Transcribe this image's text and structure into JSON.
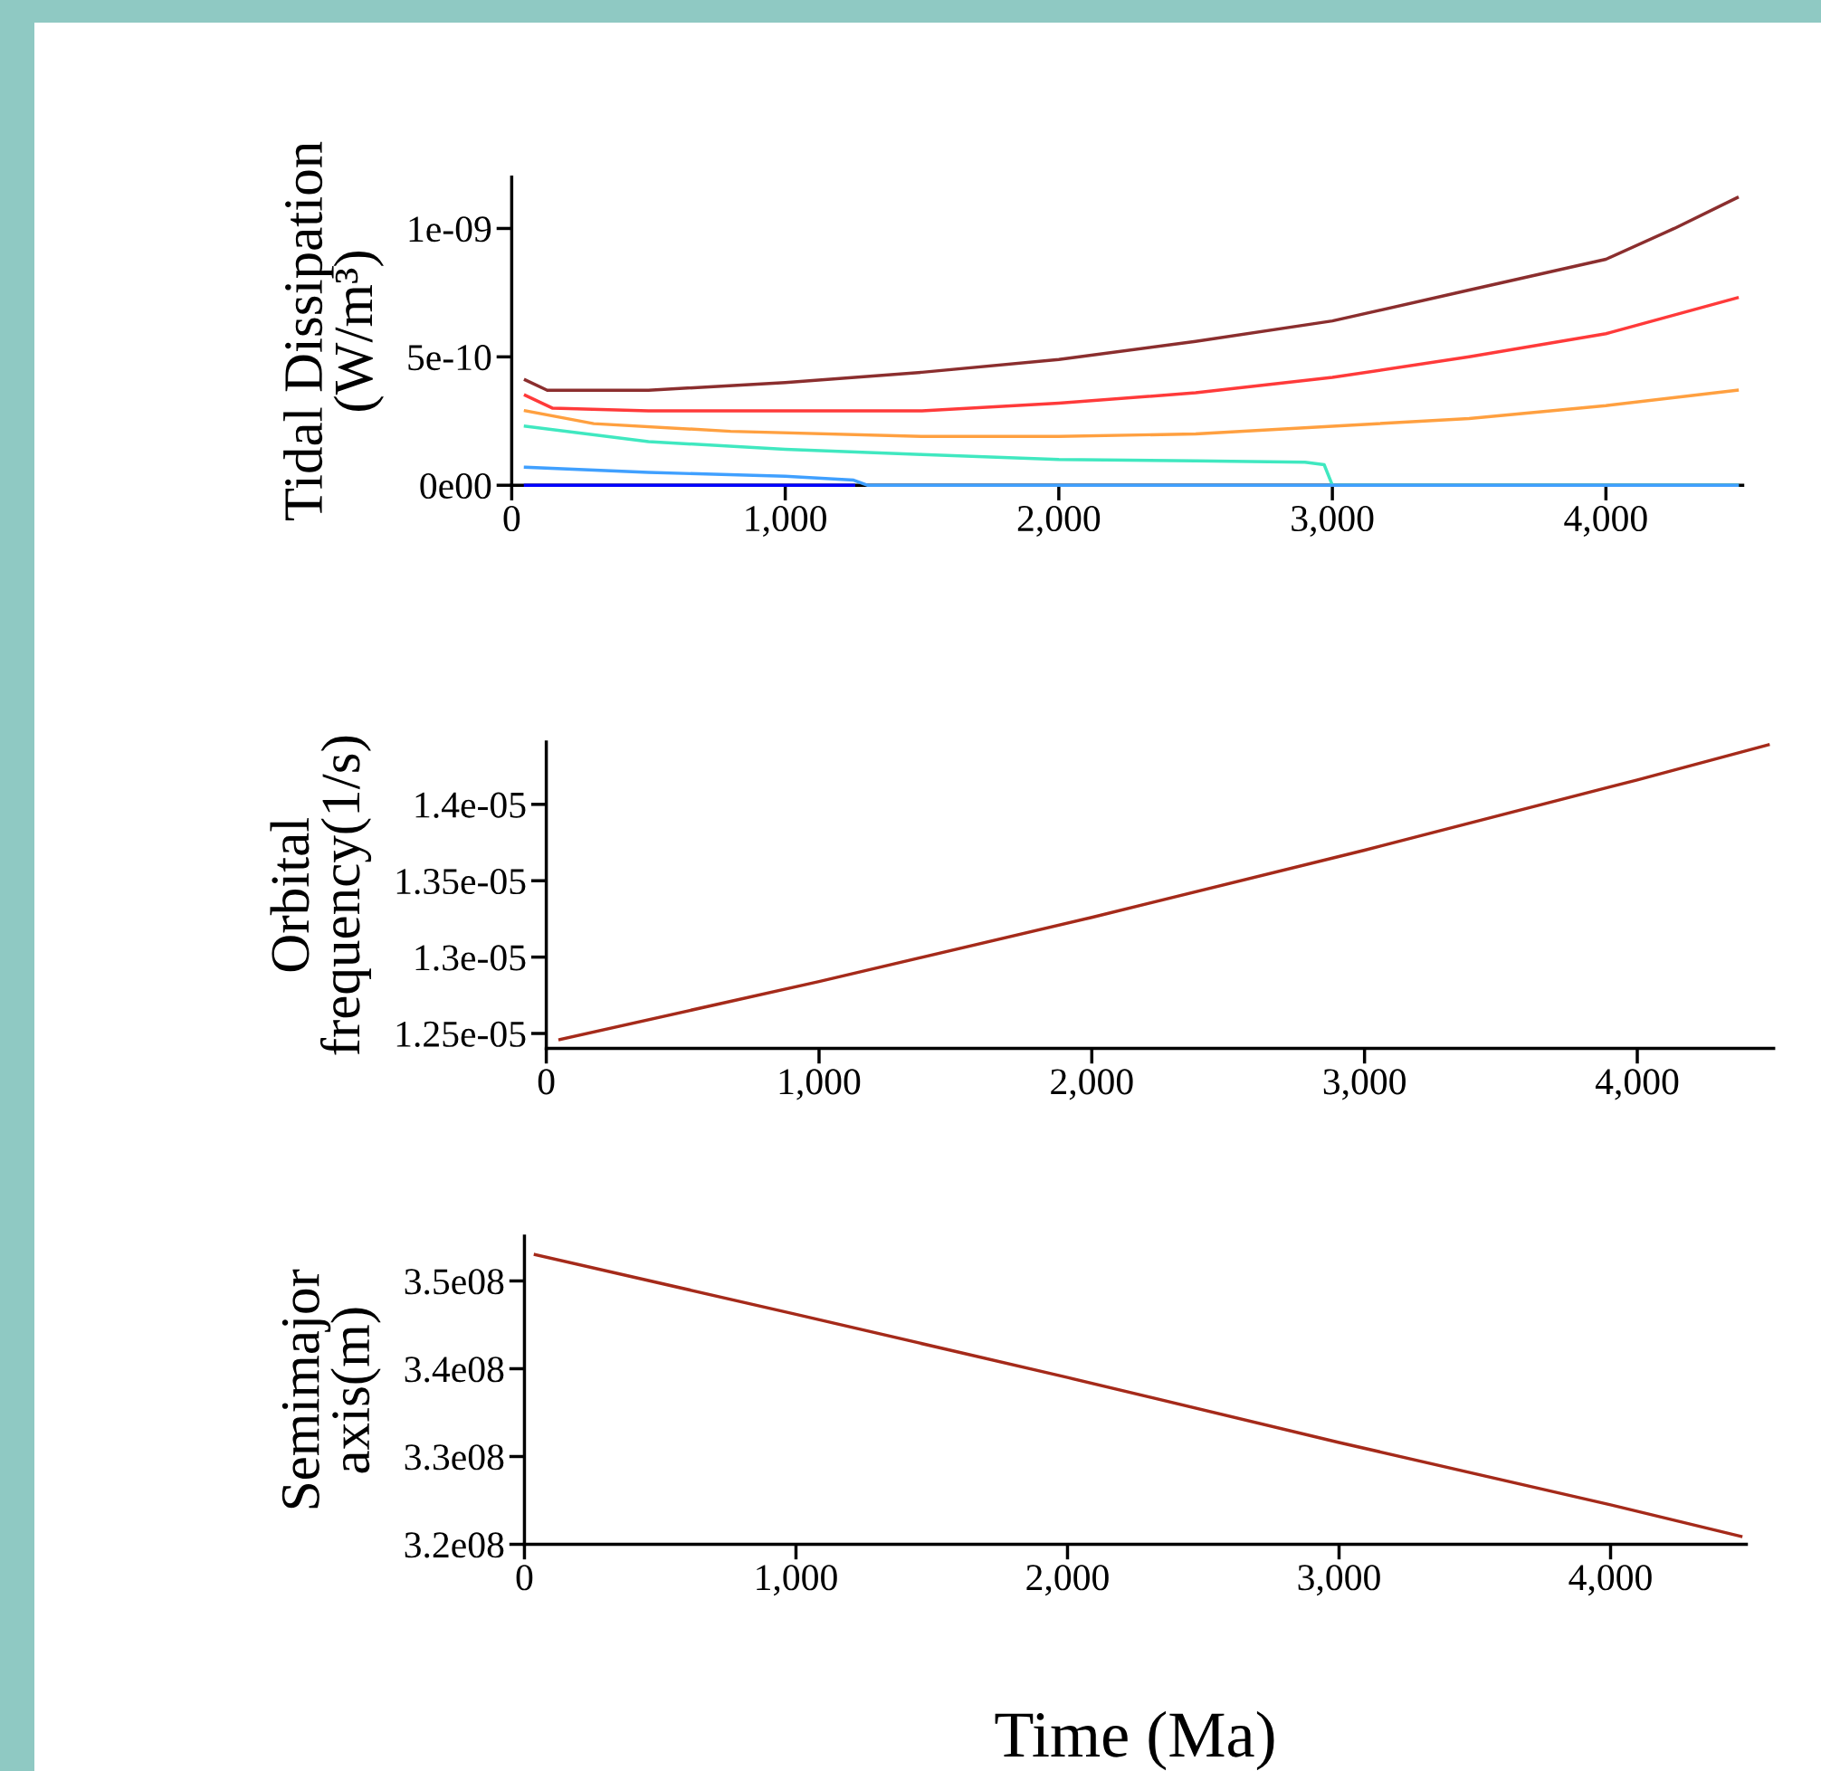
{
  "chart_data": [
    {
      "type": "line",
      "ylabel": "Tidal Dissipation\n(W/m³)",
      "xlim": [
        0,
        4500
      ],
      "ylim": [
        0,
        1.2e-09
      ],
      "xticks": [
        0,
        {
          "value": 1000,
          "label": "1,000"
        },
        {
          "value": 2000,
          "label": "2,000"
        },
        {
          "value": 3000,
          "label": "3,000"
        },
        {
          "value": 4000,
          "label": "4,000"
        }
      ],
      "yticks": [
        {
          "value": 0,
          "label": "0e00"
        },
        {
          "value": 5e-10,
          "label": "5e-10"
        },
        {
          "value": 1e-09,
          "label": "1e-09"
        }
      ],
      "grid": false,
      "legend": false,
      "marker": "none",
      "line_style": "solid",
      "series": [
        {
          "color": "#8b2e2e",
          "x": [
            50,
            130,
            500,
            1000,
            1500,
            2000,
            2500,
            3000,
            3500,
            4000,
            4250,
            4480
          ],
          "values": [
            4.1e-10,
            3.7e-10,
            3.7e-10,
            4e-10,
            4.4e-10,
            4.9e-10,
            5.6e-10,
            6.4e-10,
            7.6e-10,
            8.8e-10,
            1e-09,
            1.12e-09
          ]
        },
        {
          "color": "#ff3a3a",
          "x": [
            50,
            150,
            500,
            1000,
            1500,
            2000,
            2500,
            3000,
            3500,
            4000,
            4480
          ],
          "values": [
            3.5e-10,
            3e-10,
            2.9e-10,
            2.9e-10,
            2.9e-10,
            3.2e-10,
            3.6e-10,
            4.2e-10,
            5e-10,
            5.9e-10,
            7.3e-10
          ]
        },
        {
          "color": "#ffa040",
          "x": [
            50,
            300,
            800,
            1500,
            2000,
            2500,
            3000,
            3500,
            4000,
            4480
          ],
          "values": [
            2.9e-10,
            2.4e-10,
            2.1e-10,
            1.9e-10,
            1.9e-10,
            2e-10,
            2.3e-10,
            2.6e-10,
            3.1e-10,
            3.7e-10
          ]
        },
        {
          "color": "#40e8c0",
          "x": [
            50,
            500,
            1000,
            1500,
            2000,
            2500,
            2900,
            2970,
            3000,
            4480
          ],
          "values": [
            2.3e-10,
            1.7e-10,
            1.4e-10,
            1.2e-10,
            1e-10,
            9.5e-11,
            9e-11,
            8e-11,
            0,
            0
          ]
        },
        {
          "color": "#40a0ff",
          "x": [
            50,
            500,
            1000,
            1250,
            1300,
            4480
          ],
          "values": [
            7e-11,
            5e-11,
            3.5e-11,
            2e-11,
            0,
            0
          ]
        },
        {
          "color": "#0000ff",
          "x": [
            50,
            1250
          ],
          "values": [
            0,
            0
          ]
        }
      ]
    },
    {
      "type": "line",
      "ylabel": "Orbital\nfrequency(1/s)",
      "xlim": [
        0,
        4500
      ],
      "ylim": [
        1.2402e-05,
        1.4408e-05
      ],
      "xticks": [
        0,
        {
          "value": 1000,
          "label": "1,000"
        },
        {
          "value": 2000,
          "label": "2,000"
        },
        {
          "value": 3000,
          "label": "3,000"
        },
        {
          "value": 4000,
          "label": "4,000"
        }
      ],
      "yticks": [
        {
          "value": 1.25e-05,
          "label": "1.25e-05"
        },
        {
          "value": 1.3e-05,
          "label": "1.3e-05"
        },
        {
          "value": 1.35e-05,
          "label": "1.35e-05"
        },
        {
          "value": 1.4e-05,
          "label": "1.4e-05"
        }
      ],
      "grid": false,
      "legend": false,
      "marker": "none",
      "line_style": "solid",
      "series": [
        {
          "color": "#a52a1a",
          "x": [
            50,
            1000,
            2000,
            3000,
            4000,
            4480
          ],
          "values": [
            1.246e-05,
            1.284e-05,
            1.326e-05,
            1.37e-05,
            1.416e-05,
            1.439e-05
          ]
        }
      ]
    },
    {
      "type": "line",
      "ylabel": "Semimajor\naxis(m)",
      "xlabel": "Time (Ma)",
      "xlim": [
        0,
        4500
      ],
      "ylim": [
        320000000.0,
        355100000.0
      ],
      "xticks": [
        0,
        {
          "value": 1000,
          "label": "1,000"
        },
        {
          "value": 2000,
          "label": "2,000"
        },
        {
          "value": 3000,
          "label": "3,000"
        },
        {
          "value": 4000,
          "label": "4,000"
        }
      ],
      "yticks": [
        {
          "value": 320000000.0,
          "label": "3.2e08"
        },
        {
          "value": 330000000.0,
          "label": "3.3e08"
        },
        {
          "value": 340000000.0,
          "label": "3.4e08"
        },
        {
          "value": 350000000.0,
          "label": "3.5e08"
        }
      ],
      "grid": false,
      "legend": false,
      "marker": "none",
      "line_style": "solid",
      "series": [
        {
          "color": "#a52a1a",
          "x": [
            40,
            1000,
            2000,
            3000,
            4000,
            4480
          ],
          "values": [
            353000000.0,
            346200000.0,
            339000000.0,
            331600000.0,
            324500000.0,
            320900000.0
          ]
        }
      ]
    }
  ]
}
